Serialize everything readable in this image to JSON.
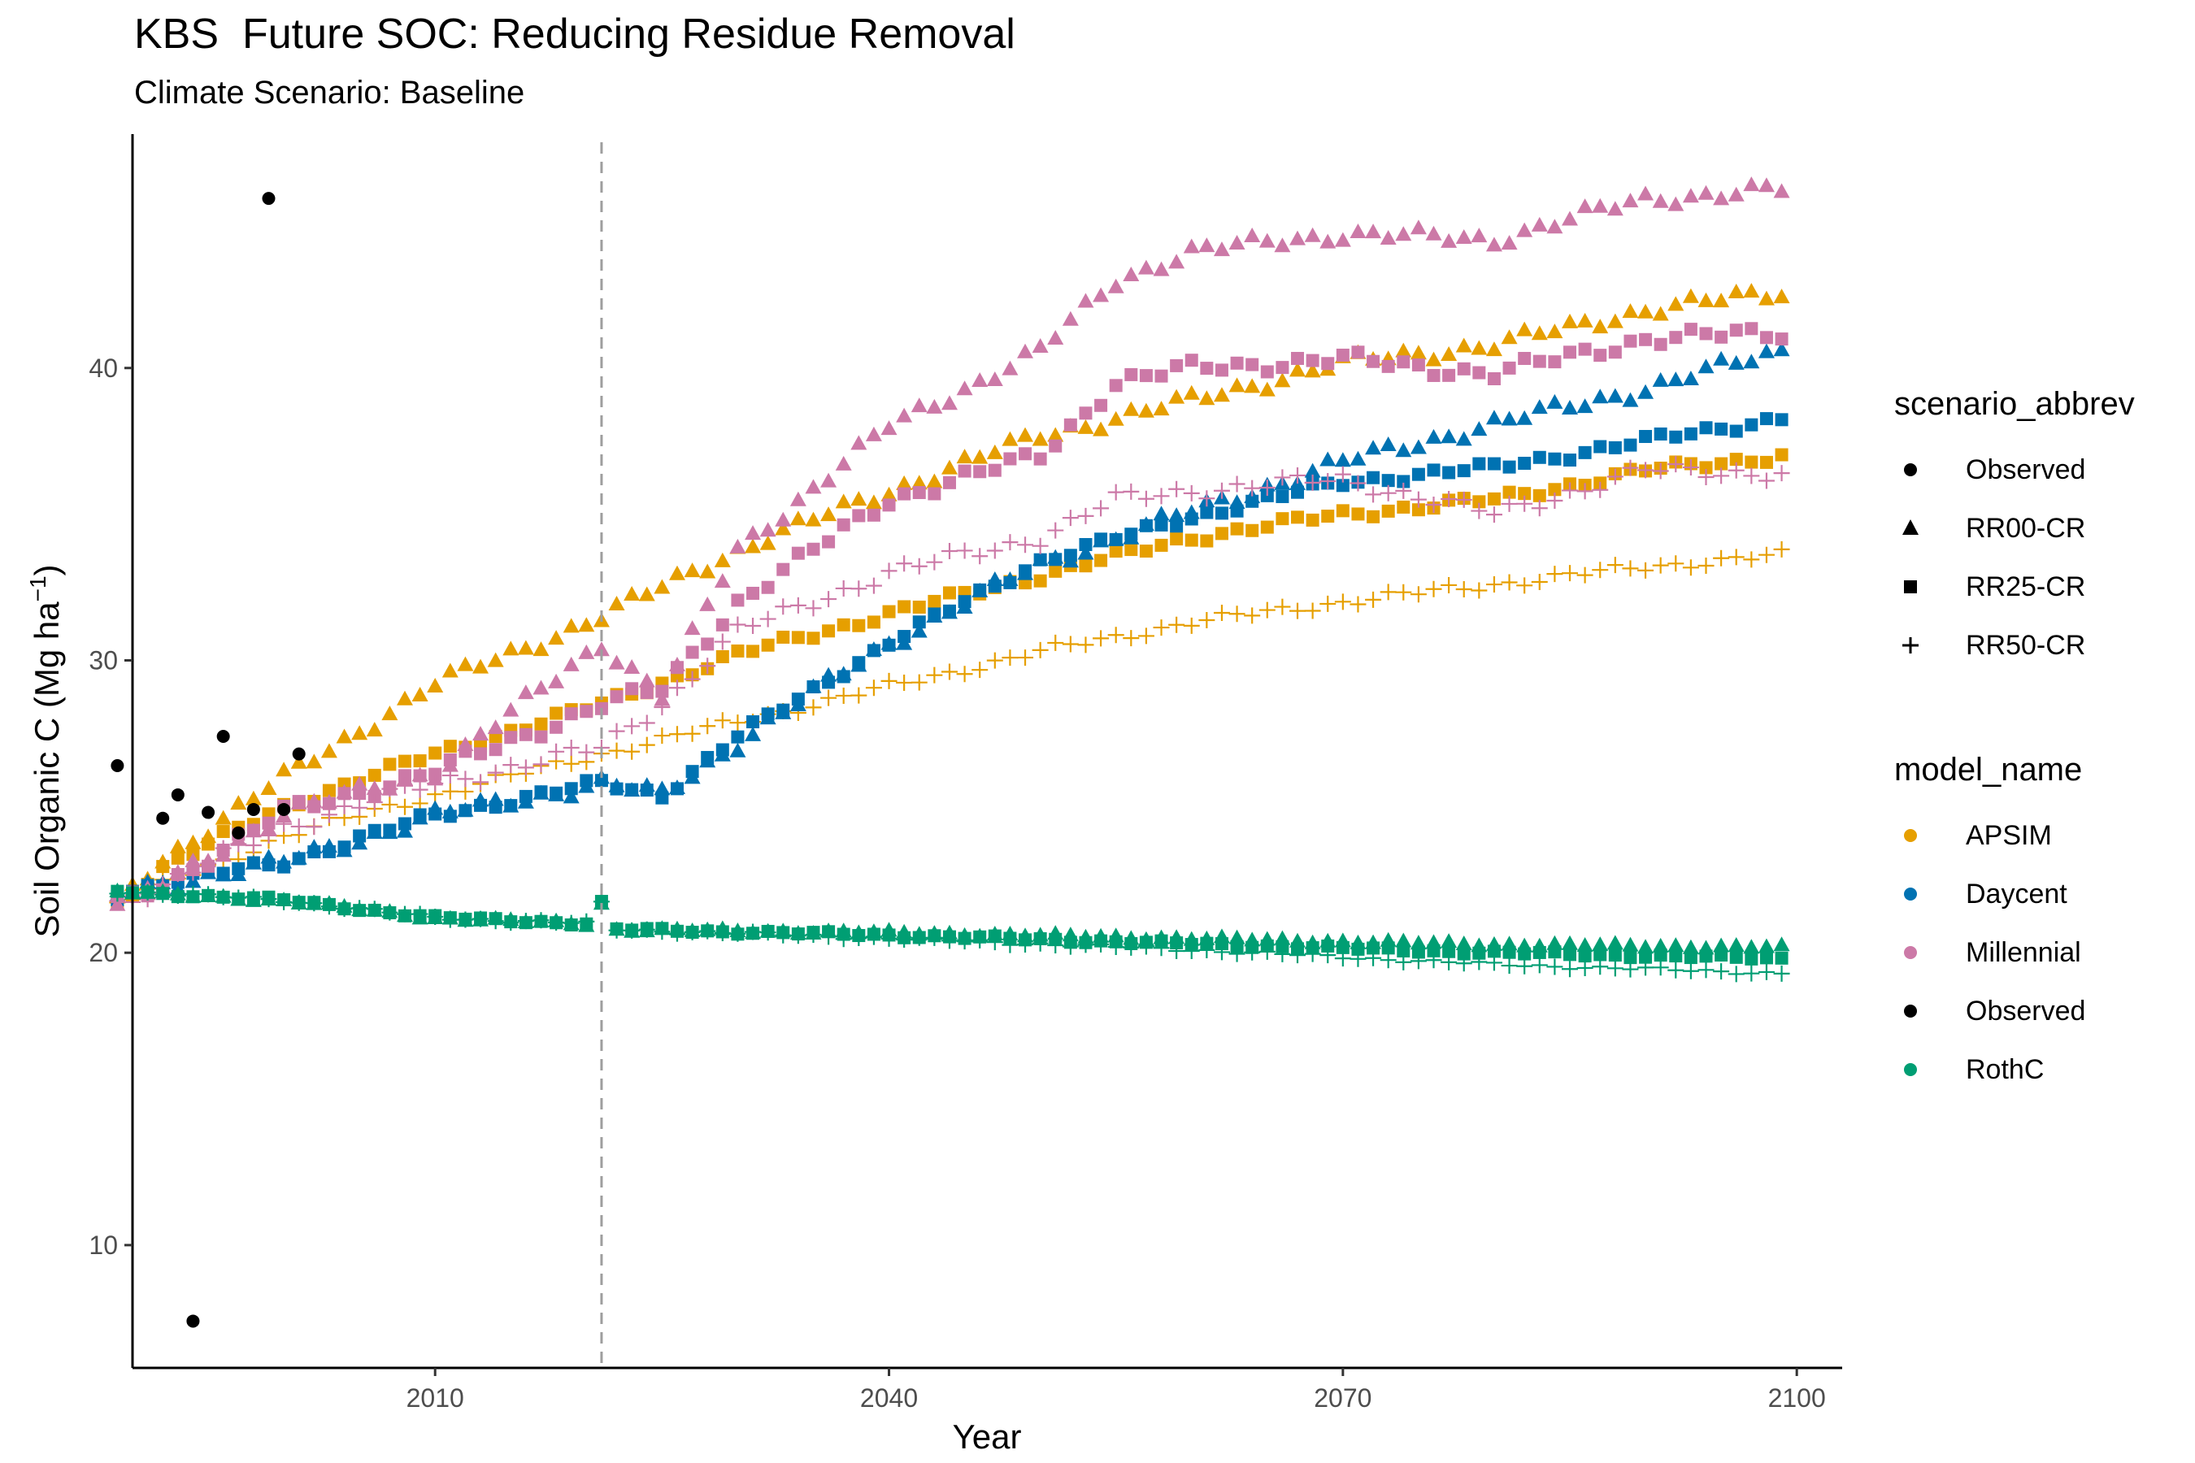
{
  "chart_data": {
    "type": "scatter",
    "title": "KBS  Future SOC: Reducing Residue Removal",
    "subtitle": "Climate Scenario: Baseline",
    "xlabel": "Year",
    "ylabel": "Soil Organic C (Mg ha",
    "ylabel_sup": "−1",
    "ylabel_close": ")",
    "xlim": [
      1990,
      2103
    ],
    "ylim": [
      5.8,
      48
    ],
    "x_ticks": [
      2010,
      2040,
      2070,
      2100
    ],
    "y_ticks": [
      10,
      20,
      30,
      40
    ],
    "reference_line_x": 2021,
    "grid": false,
    "legend_position": "right",
    "colors": {
      "APSIM": "#E69F00",
      "Daycent": "#0072B2",
      "Millennial": "#CC79A7",
      "Observed": "#000000",
      "RothC": "#009E73",
      "refline": "#9E9E9E"
    },
    "legends": [
      {
        "title": "scenario_abbrev",
        "items": [
          {
            "label": "Observed",
            "shape": "circle"
          },
          {
            "label": "RR00-CR",
            "shape": "triangle"
          },
          {
            "label": "RR25-CR",
            "shape": "square"
          },
          {
            "label": "RR50-CR",
            "shape": "plus"
          }
        ]
      },
      {
        "title": "model_name",
        "items": [
          {
            "label": "APSIM",
            "color_key": "APSIM"
          },
          {
            "label": "Daycent",
            "color_key": "Daycent"
          },
          {
            "label": "Millennial",
            "color_key": "Millennial"
          },
          {
            "label": "Observed",
            "color_key": "Observed"
          },
          {
            "label": "RothC",
            "color_key": "RothC"
          }
        ]
      }
    ],
    "observed": {
      "model": "Observed",
      "shape": "circle",
      "x": [
        1989,
        1992,
        1993,
        1994,
        1995,
        1996,
        1997,
        1998,
        1999,
        2000,
        2001
      ],
      "y": [
        26.4,
        24.6,
        25.4,
        7.4,
        24.8,
        27.4,
        24.1,
        24.9,
        45.8,
        24.9,
        26.8
      ]
    },
    "series": [
      {
        "model": "APSIM",
        "scenario": "RR00-CR",
        "shape": "triangle",
        "knots_x": [
          1989,
          1992,
          2000,
          2010,
          2021,
          2030,
          2040,
          2050,
          2060,
          2070,
          2080,
          2090,
          2099
        ],
        "knots_y": [
          21.7,
          23.2,
          26.0,
          29.2,
          31.5,
          33.8,
          35.8,
          37.7,
          38.9,
          40.2,
          40.8,
          42.0,
          42.6
        ],
        "jitter": 0.3
      },
      {
        "model": "APSIM",
        "scenario": "RR25-CR",
        "shape": "square",
        "knots_x": [
          1989,
          1992,
          2000,
          2010,
          2021,
          2030,
          2040,
          2050,
          2060,
          2070,
          2080,
          2090,
          2099
        ],
        "knots_y": [
          21.7,
          22.9,
          25.0,
          26.8,
          28.5,
          30.2,
          31.6,
          32.9,
          34.2,
          35.0,
          35.5,
          36.5,
          37.0
        ],
        "jitter": 0.2
      },
      {
        "model": "APSIM",
        "scenario": "RR50-CR",
        "shape": "plus",
        "knots_x": [
          1989,
          1992,
          2000,
          2010,
          2021,
          2030,
          2040,
          2050,
          2060,
          2070,
          2080,
          2090,
          2099
        ],
        "knots_y": [
          21.7,
          22.3,
          24.0,
          25.4,
          26.8,
          27.9,
          29.1,
          30.3,
          31.3,
          32.0,
          32.6,
          33.2,
          33.6
        ],
        "jitter": 0.2
      },
      {
        "model": "Daycent",
        "scenario": "RR00-CR",
        "shape": "triangle",
        "knots_x": [
          1989,
          1992,
          2000,
          2010,
          2021,
          2025,
          2030,
          2040,
          2050,
          2060,
          2070,
          2080,
          2090,
          2099
        ],
        "knots_y": [
          22.0,
          22.4,
          23.1,
          24.7,
          25.8,
          25.4,
          27.2,
          30.6,
          33.3,
          35.1,
          36.8,
          38.1,
          39.3,
          40.6
        ],
        "jitter": 0.3
      },
      {
        "model": "Daycent",
        "scenario": "RR25-CR",
        "shape": "square",
        "knots_x": [
          1989,
          1992,
          2000,
          2010,
          2021,
          2025,
          2030,
          2040,
          2050,
          2060,
          2070,
          2080,
          2090,
          2099
        ],
        "knots_y": [
          22.0,
          22.4,
          23.1,
          24.7,
          25.8,
          25.4,
          27.4,
          30.6,
          33.4,
          34.9,
          36.1,
          36.6,
          37.5,
          38.3
        ],
        "jitter": 0.2
      },
      {
        "model": "Millennial",
        "scenario": "RR00-CR",
        "shape": "triangle",
        "knots_x": [
          1989,
          1992,
          2000,
          2010,
          2021,
          2025,
          2030,
          2040,
          2050,
          2055,
          2060,
          2070,
          2080,
          2090,
          2099
        ],
        "knots_y": [
          21.7,
          22.3,
          24.8,
          26.2,
          30.6,
          28.8,
          33.8,
          38.0,
          40.6,
          43.0,
          44.0,
          44.6,
          44.4,
          45.8,
          46.1
        ],
        "jitter": 0.3
      },
      {
        "model": "Millennial",
        "scenario": "RR25-CR",
        "shape": "square",
        "knots_x": [
          1989,
          1992,
          2000,
          2010,
          2021,
          2025,
          2030,
          2040,
          2050,
          2055,
          2060,
          2070,
          2080,
          2090,
          2099
        ],
        "knots_y": [
          21.7,
          22.3,
          24.8,
          26.2,
          28.5,
          29.0,
          32.0,
          35.5,
          37.0,
          39.5,
          40.0,
          40.3,
          39.8,
          41.0,
          41.2
        ],
        "jitter": 0.3
      },
      {
        "model": "Millennial",
        "scenario": "RR50-CR",
        "shape": "plus",
        "knots_x": [
          1989,
          1992,
          2000,
          2010,
          2021,
          2025,
          2030,
          2040,
          2050,
          2055,
          2060,
          2070,
          2080,
          2090,
          2099
        ],
        "knots_y": [
          21.7,
          22.3,
          24.3,
          25.8,
          27.0,
          28.5,
          31.0,
          33.0,
          34.2,
          35.5,
          35.8,
          36.2,
          35.0,
          36.5,
          36.4
        ],
        "jitter": 0.3
      },
      {
        "model": "RothC",
        "scenario": "RR00-CR",
        "shape": "triangle",
        "knots_x": [
          1989,
          2000,
          2010,
          2020,
          2021,
          2022,
          2040,
          2060,
          2080,
          2099
        ],
        "knots_y": [
          22.1,
          21.8,
          21.2,
          21.0,
          21.7,
          20.8,
          20.7,
          20.5,
          20.3,
          20.2
        ],
        "jitter": 0.08
      },
      {
        "model": "RothC",
        "scenario": "RR25-CR",
        "shape": "square",
        "knots_x": [
          1989,
          2000,
          2010,
          2020,
          2021,
          2022,
          2040,
          2060,
          2080,
          2099
        ],
        "knots_y": [
          22.1,
          21.8,
          21.2,
          21.0,
          21.7,
          20.8,
          20.6,
          20.3,
          20.0,
          19.8
        ],
        "jitter": 0.08
      },
      {
        "model": "RothC",
        "scenario": "RR50-CR",
        "shape": "plus",
        "knots_x": [
          1989,
          2000,
          2010,
          2020,
          2021,
          2022,
          2040,
          2060,
          2080,
          2099
        ],
        "knots_y": [
          22.1,
          21.8,
          21.2,
          21.0,
          21.7,
          20.8,
          20.5,
          20.1,
          19.6,
          19.3
        ],
        "jitter": 0.08
      }
    ]
  }
}
